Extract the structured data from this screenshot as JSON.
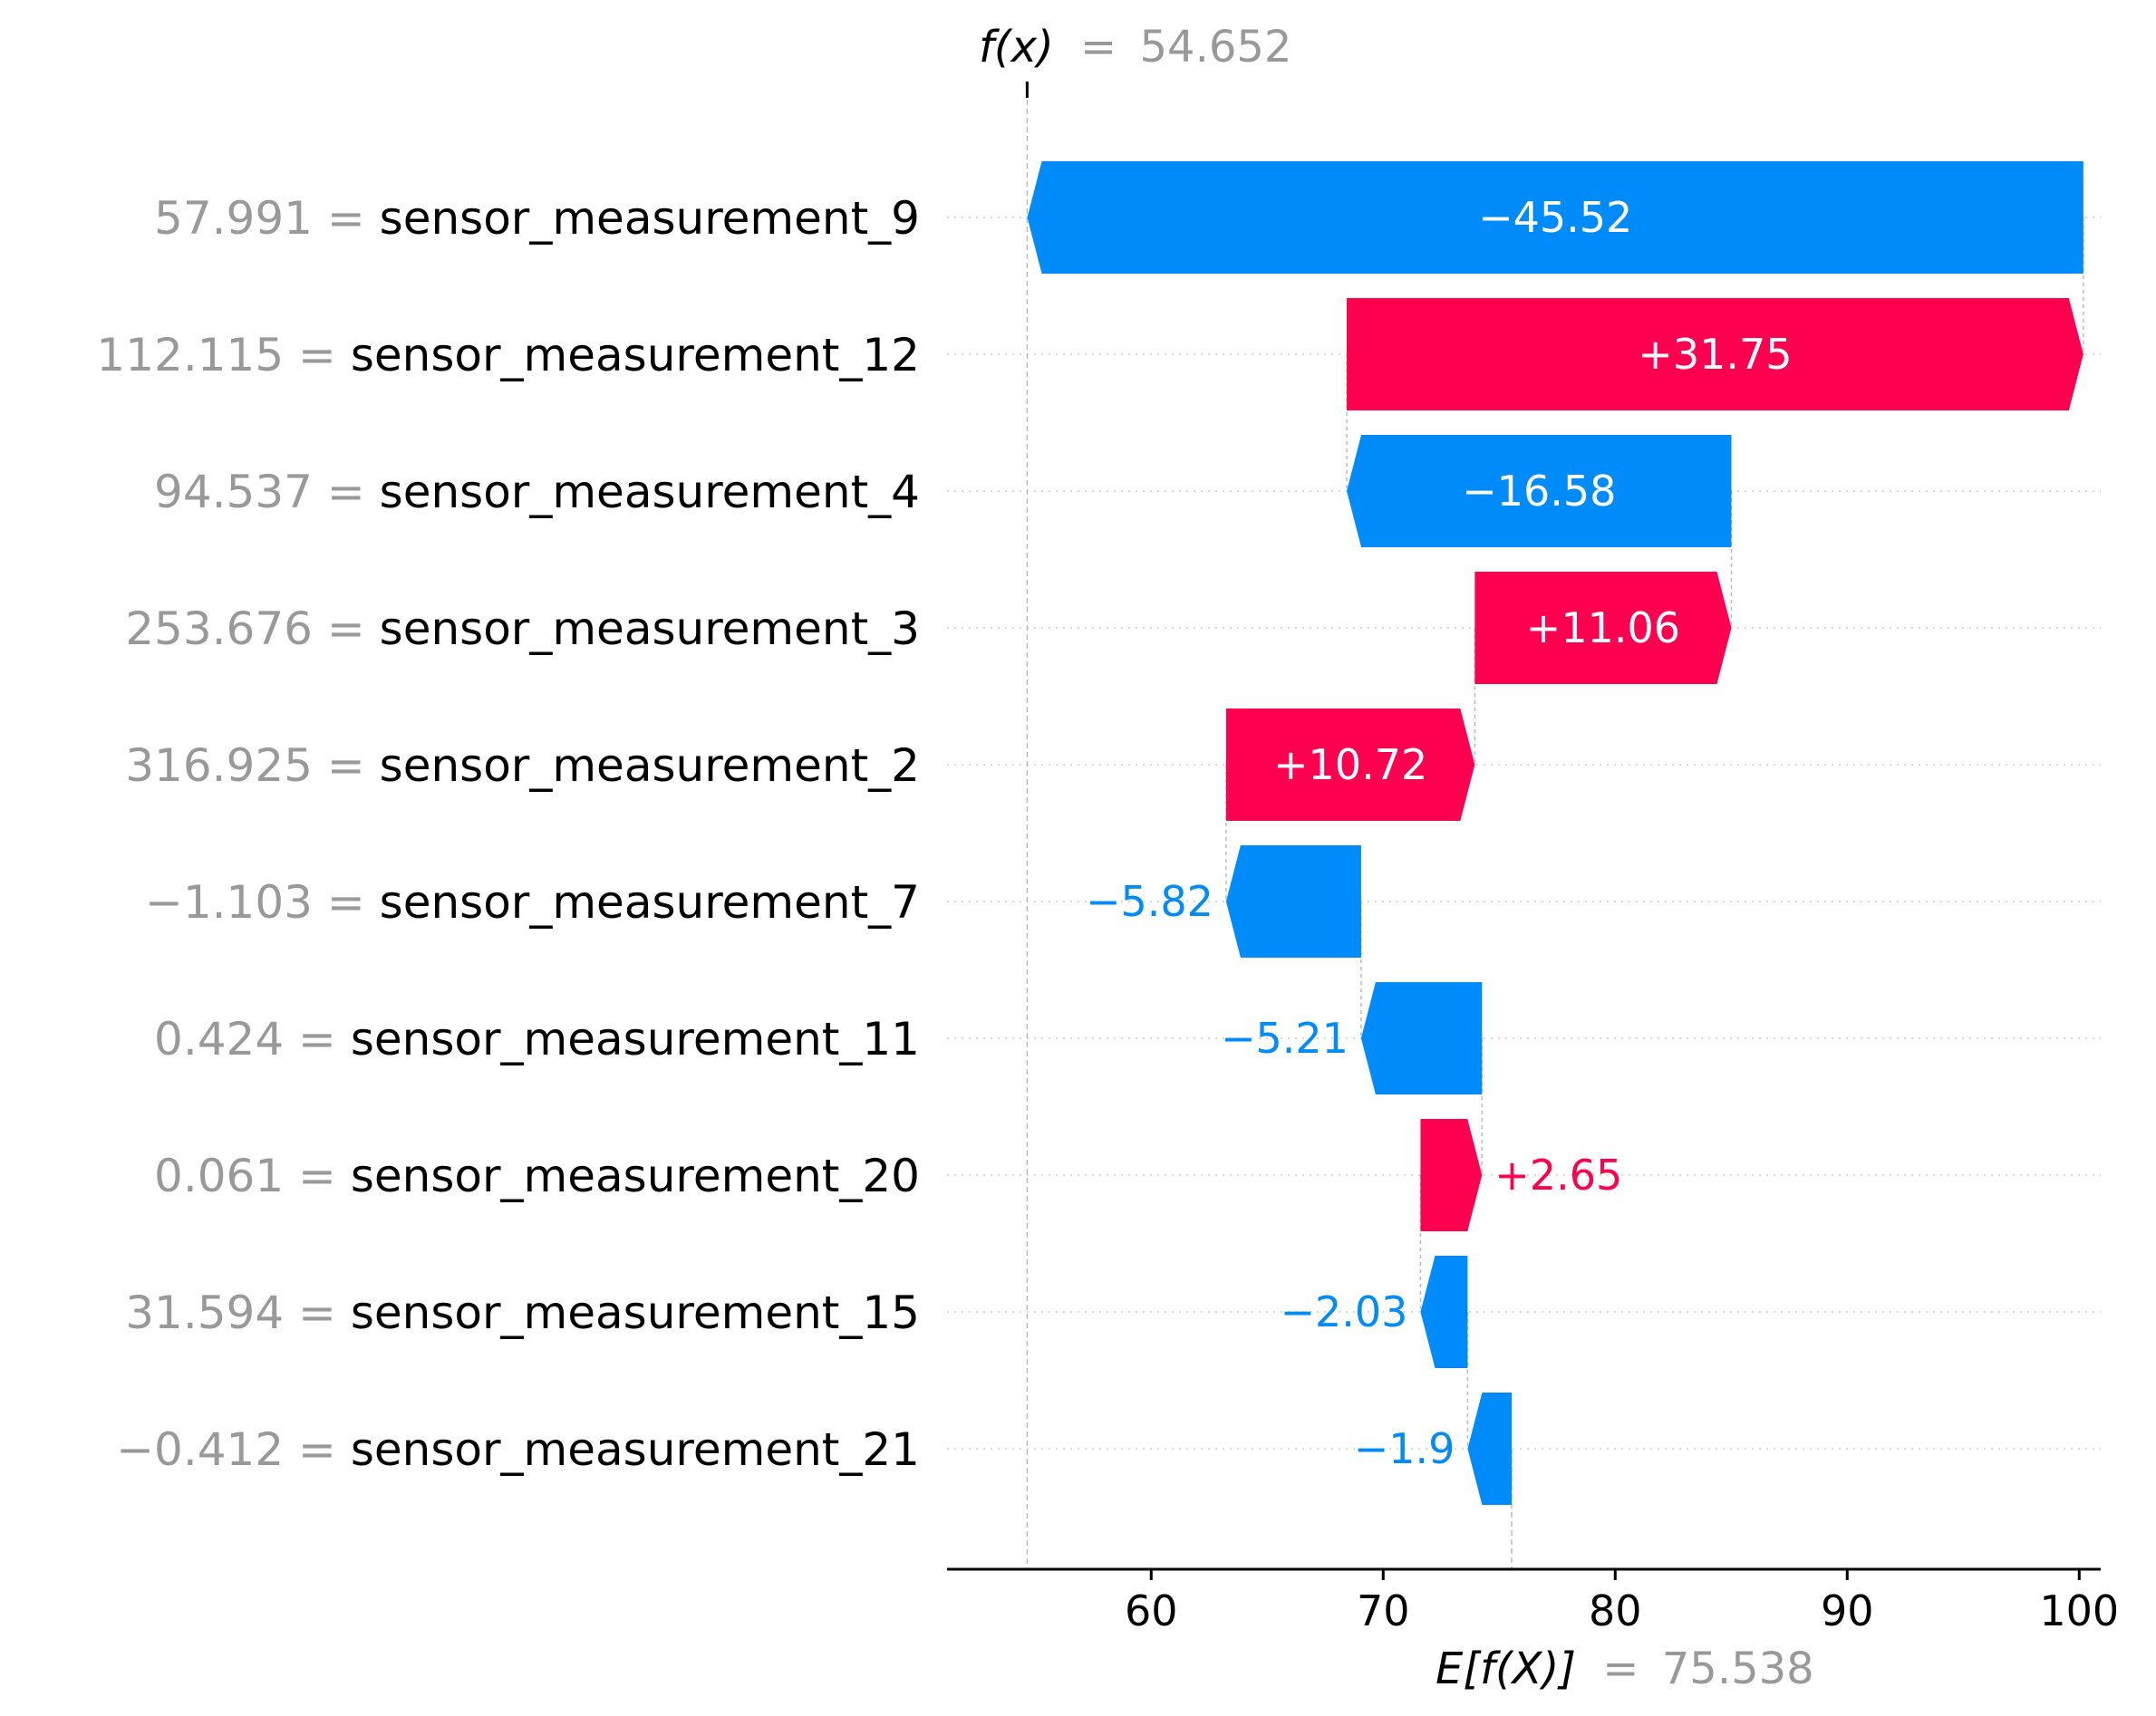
{
  "chart_data": {
    "type": "waterfall",
    "fx": {
      "label": "f(x)",
      "equals": "=",
      "value": 54.652,
      "value_text": "54.652"
    },
    "base": {
      "label": "E[f(X)]",
      "equals": "=",
      "value": 75.538,
      "value_text": "75.538"
    },
    "features": [
      {
        "name": "sensor_measurement_9",
        "feature_value": "57.991",
        "shap": -45.52,
        "label": "−45.52"
      },
      {
        "name": "sensor_measurement_12",
        "feature_value": "112.115",
        "shap": 31.75,
        "label": "+31.75"
      },
      {
        "name": "sensor_measurement_4",
        "feature_value": "94.537",
        "shap": -16.58,
        "label": "−16.58"
      },
      {
        "name": "sensor_measurement_3",
        "feature_value": "253.676",
        "shap": 11.06,
        "label": "+11.06"
      },
      {
        "name": "sensor_measurement_2",
        "feature_value": "316.925",
        "shap": 10.72,
        "label": "+10.72"
      },
      {
        "name": "sensor_measurement_7",
        "feature_value": "−1.103",
        "shap": -5.82,
        "label": "−5.82"
      },
      {
        "name": "sensor_measurement_11",
        "feature_value": "0.424",
        "shap": -5.21,
        "label": "−5.21"
      },
      {
        "name": "sensor_measurement_20",
        "feature_value": "0.061",
        "shap": 2.65,
        "label": "+2.65"
      },
      {
        "name": "sensor_measurement_15",
        "feature_value": "31.594",
        "shap": -2.03,
        "label": "−2.03"
      },
      {
        "name": "sensor_measurement_21",
        "feature_value": "−0.412",
        "shap": -1.9,
        "label": "−1.9"
      }
    ],
    "x_ticks": [
      60,
      70,
      80,
      90,
      100
    ],
    "xlim": [
      51.2,
      101.2
    ],
    "colors": {
      "positive": "#ff0051",
      "negative": "#008bfb",
      "muted": "#999999",
      "text": "#000000"
    }
  }
}
